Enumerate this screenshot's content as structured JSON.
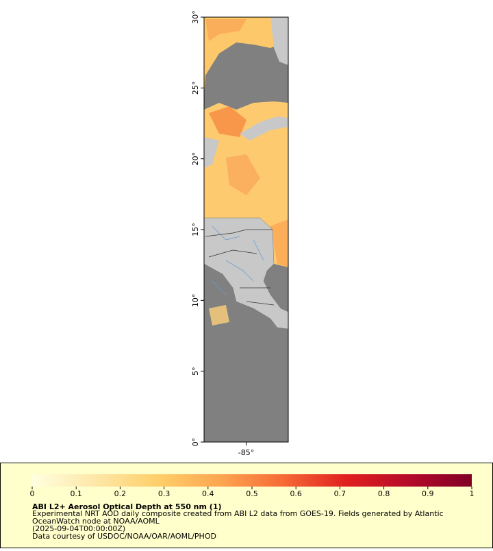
{
  "map": {
    "latlim": [
      0,
      30
    ],
    "lonlim": [
      -88,
      -82
    ],
    "lat_ticks": [
      {
        "value": 0,
        "label": "0°"
      },
      {
        "value": 5,
        "label": "5°"
      },
      {
        "value": 10,
        "label": "10°"
      },
      {
        "value": 15,
        "label": "15°"
      },
      {
        "value": 20,
        "label": "20°"
      },
      {
        "value": 25,
        "label": "25°"
      },
      {
        "value": 30,
        "label": "30°"
      }
    ],
    "lon_ticks": [
      {
        "value": -85,
        "label": "-85°"
      }
    ]
  },
  "colorbar": {
    "lim": [
      0,
      1
    ],
    "ticks": [
      0,
      0.1,
      0.2,
      0.3,
      0.4,
      0.5,
      0.6,
      0.7,
      0.8,
      0.9,
      1
    ],
    "colors": [
      "#ffffe0",
      "#fee7a8",
      "#fecf6a",
      "#fda550",
      "#f66a35",
      "#e0201f",
      "#b50a2a",
      "#800026"
    ]
  },
  "info": {
    "title": "ABI L2+ Aerosol Optical Depth at 550 nm (1)",
    "lines": [
      "Experimental NRT AOD daily composite created from ABI L2 data from GOES-19. Fields generated by Atlantic",
      "OceanWatch node at NOAA/AOML",
      "(2025-09-04T00:00:00Z)",
      "Data courtesy of USDOC/NOAA/OAR/AOML/PHOD"
    ]
  }
}
